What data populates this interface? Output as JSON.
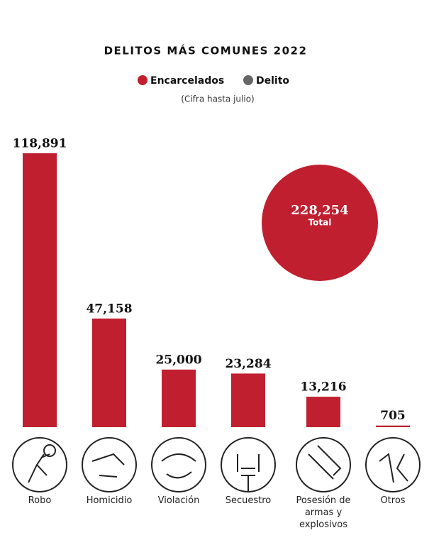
{
  "chart_data": {
    "type": "bar",
    "title": "DELITOS MÁS COMUNES 2022",
    "subtitle": "(Cifra hasta julio)",
    "legend": [
      {
        "name": "Encarcelados",
        "color": "#c01f2f"
      },
      {
        "name": "Delito",
        "color": "#666666"
      }
    ],
    "categories": [
      "Robo",
      "Homicidio",
      "Violación",
      "Secuestro",
      "Posesión de armas y explosivos",
      "Otros"
    ],
    "values": [
      118891,
      47158,
      25000,
      23284,
      13216,
      705
    ],
    "value_labels": [
      "118,891",
      "47,158",
      "25,000",
      "23,284",
      "13,216",
      "705"
    ],
    "color": "#c01f2f",
    "total": {
      "value": 228254,
      "label": "228,254",
      "text": "Total"
    }
  }
}
